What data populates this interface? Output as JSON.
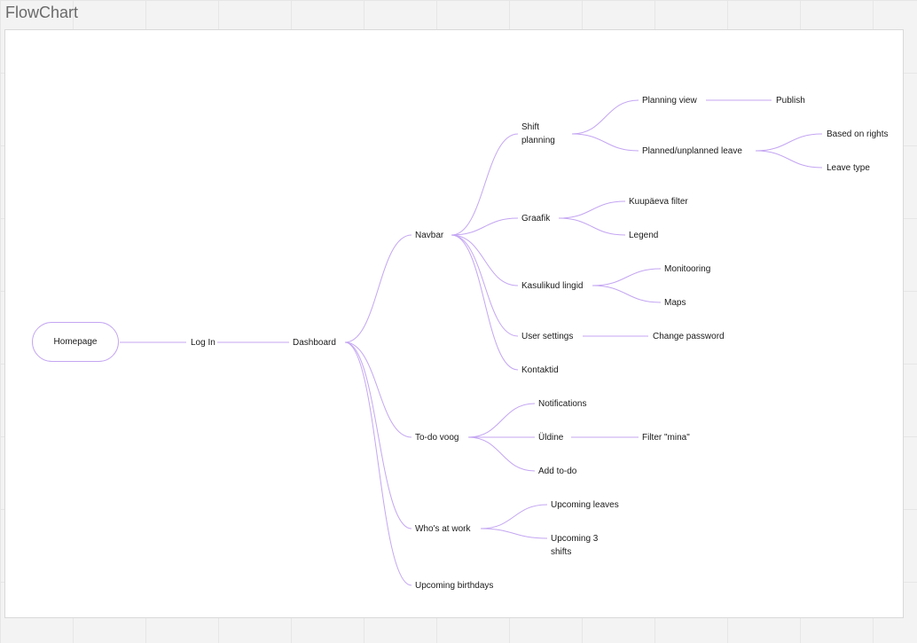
{
  "board": {
    "frame_title": "FlowChart"
  },
  "colors": {
    "connector": "#c4a6f2"
  },
  "nodes": {
    "homepage": "Homepage",
    "log_in": "Log In",
    "dashboard": "Dashboard",
    "navbar": "Navbar",
    "shift_planning": "Shift planning",
    "planning_view": "Planning view",
    "publish": "Publish",
    "planned_leave": "Planned/unplanned leave",
    "based_on_rights": "Based on rights",
    "leave_type": "Leave type",
    "graafik": "Graafik",
    "kuupaeva_filter": "Kuupäeva filter",
    "legend": "Legend",
    "kasulikud_lingid": "Kasulikud lingid",
    "monitooring": "Monitooring",
    "maps": "Maps",
    "user_settings": "User settings",
    "change_password": "Change password",
    "kontaktid": "Kontaktid",
    "todo_voog": "To-do voog",
    "notifications": "Notifications",
    "uldine": "Üldine",
    "filter_mina": "Filter \"mina\"",
    "add_todo": "Add to-do",
    "whos_at_work": "Who's at work",
    "upcoming_leaves": "Upcoming leaves",
    "upcoming_3_shifts": "Upcoming 3 shifts",
    "upcoming_birthdays": "Upcoming birthdays"
  }
}
